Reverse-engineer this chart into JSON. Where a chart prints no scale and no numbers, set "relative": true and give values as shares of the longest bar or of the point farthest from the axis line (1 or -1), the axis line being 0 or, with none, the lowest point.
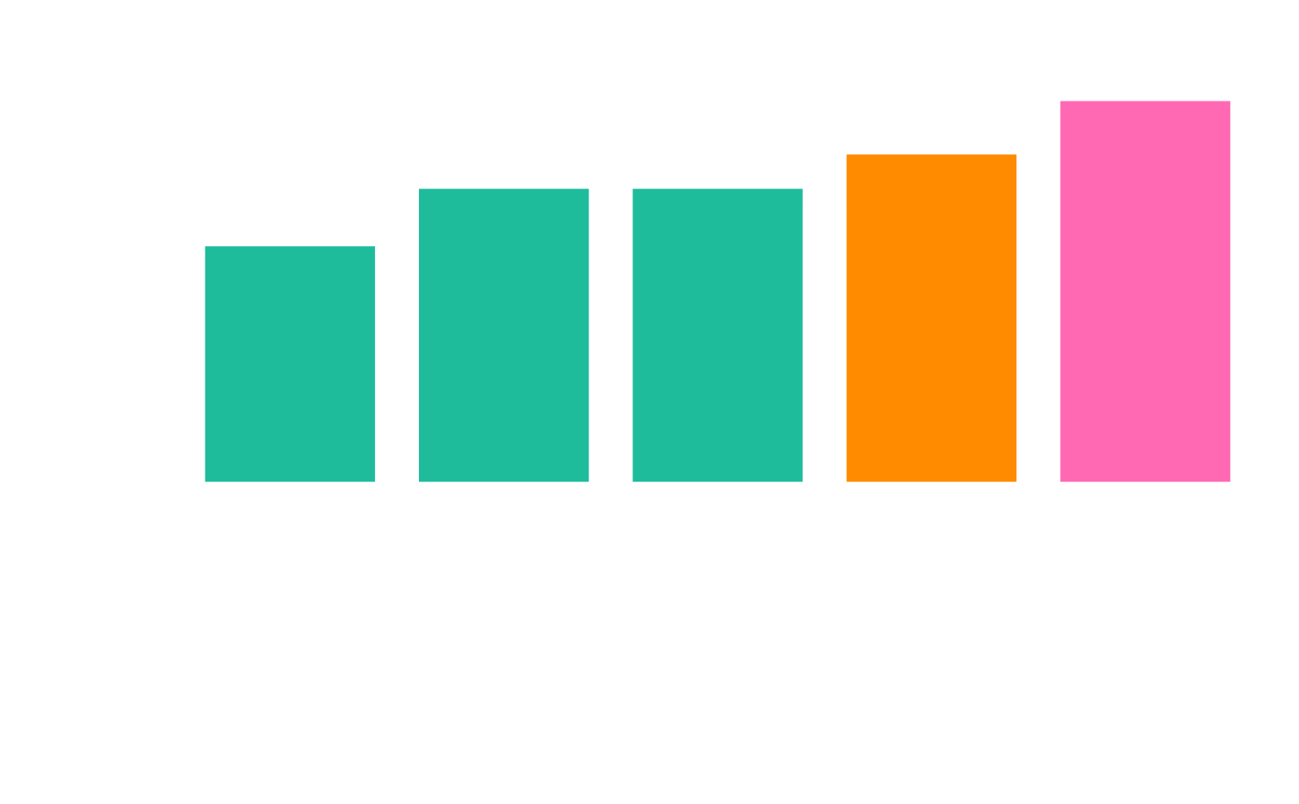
{
  "chart_data": {
    "type": "bar",
    "relative": true,
    "categories": [
      null,
      null,
      null,
      null,
      null
    ],
    "values": [
      0.62,
      0.77,
      0.77,
      0.86,
      1.0
    ],
    "colors": [
      "#1fbc9c",
      "#1fbc9c",
      "#1fbc9c",
      "#ff8c00",
      "#ff69b4"
    ]
  }
}
